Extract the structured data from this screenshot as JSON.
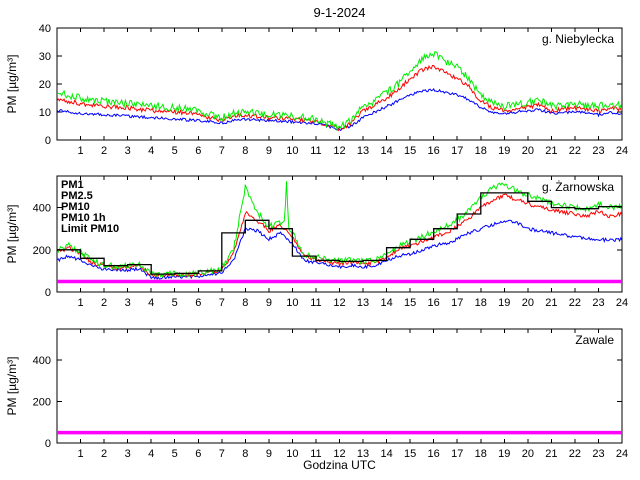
{
  "title": "9-1-2024",
  "xlabel": "Godzina UTC",
  "xlim": [
    0,
    24
  ],
  "xticks": [
    1,
    2,
    3,
    4,
    5,
    6,
    7,
    8,
    9,
    10,
    11,
    12,
    13,
    14,
    15,
    16,
    17,
    18,
    19,
    20,
    21,
    22,
    23,
    24
  ],
  "colors": {
    "pm1": "#0000ff",
    "pm25": "#ff0000",
    "pm10": "#00ee00",
    "pm10_1h": "#000000",
    "limit_pm10": "#ff00ff"
  },
  "chart_data": [
    {
      "type": "line",
      "station": "g. Niebylecka",
      "ylabel": "PM [µg/m³]",
      "ylim": [
        0,
        40
      ],
      "yticks": [
        0,
        10,
        20,
        30,
        40
      ],
      "x_start": 0,
      "x_step": 0.5,
      "series": [
        {
          "name": "PM1",
          "color": "#0000ff",
          "noise": 0.5,
          "y": [
            10.5,
            10,
            9.5,
            9.2,
            9,
            8.8,
            8.5,
            8.2,
            8,
            7.8,
            7.5,
            7.2,
            7,
            6.5,
            6,
            7,
            7.5,
            7.2,
            7,
            6.8,
            6.5,
            6.2,
            6,
            5,
            3.8,
            5,
            8,
            10,
            12,
            14,
            16,
            17.5,
            18,
            17,
            16,
            14.5,
            11.5,
            10,
            9.5,
            10,
            10.5,
            10.8,
            9.5,
            9.8,
            10,
            9.8,
            9,
            9.8,
            9.5
          ]
        },
        {
          "name": "PM2.5",
          "color": "#ff0000",
          "noise": 0.8,
          "y": [
            14.5,
            13.8,
            13,
            12.5,
            12,
            11.8,
            11.5,
            11,
            10.5,
            10.2,
            10,
            9.8,
            9.5,
            8,
            7,
            8.5,
            9,
            8.5,
            8,
            7.8,
            7.5,
            7,
            6.5,
            5.5,
            4,
            6,
            10.5,
            12.5,
            15,
            18,
            22,
            25,
            26,
            24,
            22,
            19,
            14,
            11.5,
            10.5,
            11,
            12,
            12.5,
            10.5,
            11,
            11.5,
            11,
            10.5,
            11.5,
            11
          ]
        },
        {
          "name": "PM10",
          "color": "#00ee00",
          "noise": 1.3,
          "y": [
            17,
            16,
            15,
            14.5,
            14,
            13.5,
            13,
            12.5,
            12,
            12,
            11.5,
            11,
            10.5,
            9,
            8,
            9.5,
            10,
            9.5,
            9,
            9,
            8.5,
            8,
            7.5,
            6,
            4.5,
            7,
            12,
            14,
            17,
            20,
            25,
            29,
            31,
            28,
            26,
            22,
            16,
            13,
            12,
            12.5,
            13.5,
            14,
            12,
            12.5,
            13,
            12.5,
            12,
            13,
            12
          ]
        }
      ]
    },
    {
      "type": "line",
      "station": "g. Żarnowska",
      "ylabel": "PM [µg/m³]",
      "ylim": [
        0,
        550
      ],
      "yticks": [
        0,
        200,
        400
      ],
      "x_start": 0,
      "x_step": 0.5,
      "legend": [
        {
          "label": "PM1",
          "color": "#0000ff"
        },
        {
          "label": "PM2.5",
          "color": "#ff0000"
        },
        {
          "label": "PM10",
          "color": "#00ee00"
        },
        {
          "label": "PM10 1h",
          "color": "#000000"
        },
        {
          "label": "Limit PM10",
          "color": "#ff00ff"
        }
      ],
      "series": [
        {
          "name": "PM1",
          "color": "#0000ff",
          "noise": 8,
          "y": [
            150,
            170,
            150,
            120,
            110,
            100,
            105,
            110,
            68,
            70,
            75,
            70,
            75,
            80,
            90,
            150,
            300,
            290,
            250,
            280,
            230,
            150,
            140,
            130,
            120,
            125,
            120,
            125,
            150,
            170,
            180,
            200,
            220,
            230,
            250,
            280,
            300,
            320,
            340,
            330,
            300,
            290,
            280,
            270,
            260,
            255,
            250,
            245,
            250
          ]
        },
        {
          "name": "PM2.5",
          "color": "#ff0000",
          "noise": 10,
          "y": [
            190,
            210,
            180,
            140,
            125,
            115,
            120,
            125,
            78,
            80,
            85,
            80,
            85,
            95,
            105,
            180,
            380,
            340,
            290,
            320,
            260,
            170,
            155,
            145,
            135,
            140,
            135,
            140,
            170,
            200,
            220,
            240,
            260,
            280,
            310,
            350,
            400,
            430,
            460,
            440,
            420,
            400,
            390,
            380,
            370,
            360,
            380,
            360,
            370
          ]
        },
        {
          "name": "PM10",
          "color": "#00ee00",
          "noise": 14,
          "x": [
            0,
            0.5,
            1,
            1.5,
            2,
            2.5,
            3,
            3.5,
            4,
            4.5,
            5,
            5.5,
            6,
            6.5,
            7,
            7.5,
            8,
            8.5,
            9,
            9.5,
            9.65,
            9.75,
            9.85,
            10,
            10.5,
            11,
            11.5,
            12,
            12.5,
            13,
            13.5,
            14,
            14.5,
            15,
            15.5,
            16,
            16.5,
            17,
            17.5,
            18,
            18.5,
            19,
            19.5,
            20,
            20.5,
            21,
            21.5,
            22,
            22.5,
            23,
            23.5,
            24
          ],
          "y": [
            200,
            220,
            190,
            150,
            130,
            120,
            125,
            130,
            85,
            85,
            90,
            85,
            90,
            100,
            115,
            200,
            500,
            380,
            310,
            330,
            330,
            520,
            300,
            280,
            180,
            165,
            155,
            145,
            150,
            145,
            150,
            185,
            215,
            240,
            260,
            285,
            310,
            340,
            390,
            450,
            490,
            515,
            480,
            460,
            440,
            420,
            410,
            400,
            390,
            420,
            400,
            410
          ]
        }
      ],
      "step_series": {
        "name": "PM10 1h",
        "color": "#000000",
        "hours": [
          1,
          2,
          3,
          4,
          5,
          6,
          7,
          8,
          9,
          10,
          11,
          12,
          13,
          14,
          15,
          16,
          17,
          18,
          19,
          20,
          21,
          22,
          23,
          24
        ],
        "values": [
          200,
          160,
          125,
          130,
          85,
          88,
          100,
          280,
          340,
          300,
          170,
          150,
          145,
          150,
          210,
          250,
          300,
          370,
          470,
          470,
          430,
          400,
          395,
          405
        ]
      },
      "limit": {
        "name": "Limit PM10",
        "color": "#ff00ff",
        "value": 50
      }
    },
    {
      "type": "line",
      "station": "Zawale",
      "ylabel": "PM [µg/m³]",
      "ylim": [
        0,
        550
      ],
      "yticks": [
        0,
        200,
        400
      ],
      "x_start": 0,
      "x_step": 0.5,
      "series": [],
      "limit": {
        "name": "Limit PM10",
        "color": "#ff00ff",
        "value": 50
      }
    }
  ]
}
